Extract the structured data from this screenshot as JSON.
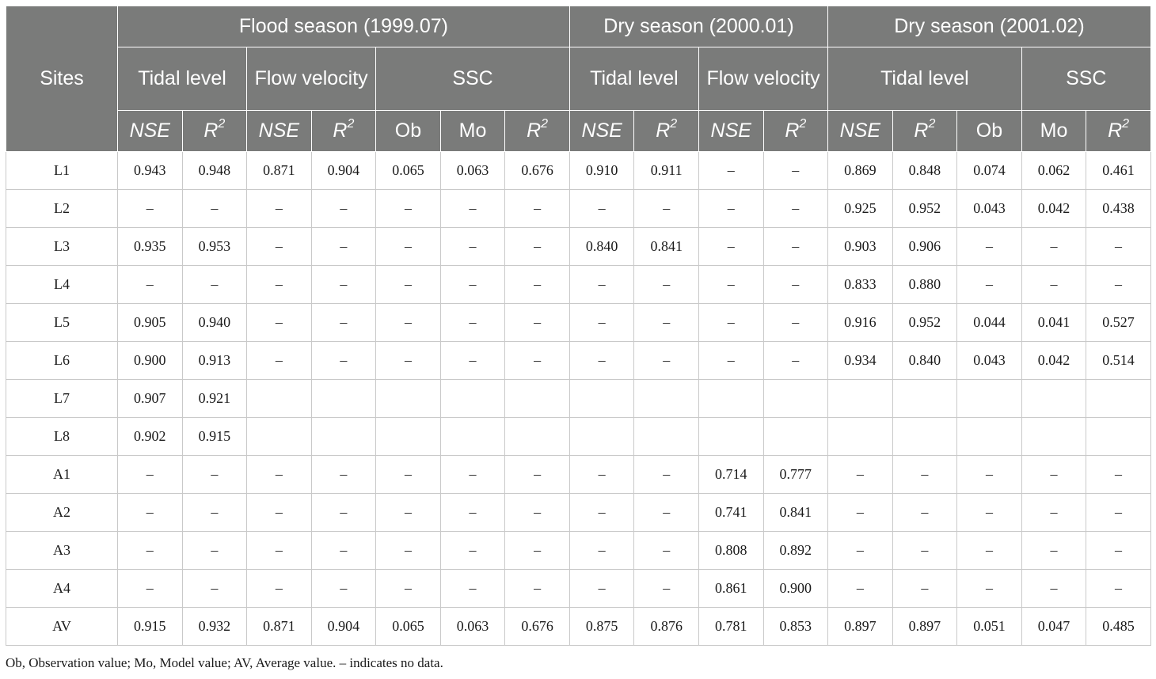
{
  "headers": {
    "sites": "Sites",
    "groups": [
      "Flood season (1999.07)",
      "Dry season (2000.01)",
      "Dry season (2001.02)"
    ],
    "flood": {
      "tidal": "Tidal level",
      "flow": "Flow velocity",
      "ssc": "SSC"
    },
    "dry1": {
      "tidal": "Tidal level",
      "flow": "Flow velocity"
    },
    "dry2": {
      "tidal": "Tidal level",
      "ssc": "SSC"
    },
    "sub": {
      "nse": "NSE",
      "r": "R",
      "sq": "2",
      "ob": "Ob",
      "mo": "Mo"
    }
  },
  "rows": [
    {
      "site": "L1",
      "cells": [
        "0.943",
        "0.948",
        "0.871",
        "0.904",
        "0.065",
        "0.063",
        "0.676",
        "0.910",
        "0.911",
        "–",
        "–",
        "0.869",
        "0.848",
        "0.074",
        "0.062",
        "0.461"
      ]
    },
    {
      "site": "L2",
      "cells": [
        "–",
        "–",
        "–",
        "–",
        "–",
        "–",
        "–",
        "–",
        "–",
        "–",
        "–",
        "0.925",
        "0.952",
        "0.043",
        "0.042",
        "0.438"
      ]
    },
    {
      "site": "L3",
      "cells": [
        "0.935",
        "0.953",
        "–",
        "–",
        "–",
        "–",
        "–",
        "0.840",
        "0.841",
        "–",
        "–",
        "0.903",
        "0.906",
        "–",
        "–",
        "–"
      ]
    },
    {
      "site": "L4",
      "cells": [
        "–",
        "–",
        "–",
        "–",
        "–",
        "–",
        "–",
        "–",
        "–",
        "–",
        "–",
        "0.833",
        "0.880",
        "–",
        "–",
        "–"
      ]
    },
    {
      "site": "L5",
      "cells": [
        "0.905",
        "0.940",
        "–",
        "–",
        "–",
        "–",
        "–",
        "–",
        "–",
        "–",
        "–",
        "0.916",
        "0.952",
        "0.044",
        "0.041",
        "0.527"
      ]
    },
    {
      "site": "L6",
      "cells": [
        "0.900",
        "0.913",
        "–",
        "–",
        "–",
        "–",
        "–",
        "–",
        "–",
        "–",
        "–",
        "0.934",
        "0.840",
        "0.043",
        "0.042",
        "0.514"
      ]
    },
    {
      "site": "L7",
      "cells": [
        "0.907",
        "0.921",
        "",
        "",
        "",
        "",
        "",
        "",
        "",
        "",
        "",
        "",
        "",
        "",
        "",
        ""
      ]
    },
    {
      "site": "L8",
      "cells": [
        "0.902",
        "0.915",
        "",
        "",
        "",
        "",
        "",
        "",
        "",
        "",
        "",
        "",
        "",
        "",
        "",
        ""
      ]
    },
    {
      "site": "A1",
      "cells": [
        "–",
        "–",
        "–",
        "–",
        "–",
        "–",
        "–",
        "–",
        "–",
        "0.714",
        "0.777",
        "–",
        "–",
        "–",
        "–",
        "–"
      ]
    },
    {
      "site": "A2",
      "cells": [
        "–",
        "–",
        "–",
        "–",
        "–",
        "–",
        "–",
        "–",
        "–",
        "0.741",
        "0.841",
        "–",
        "–",
        "–",
        "–",
        "–"
      ]
    },
    {
      "site": "A3",
      "cells": [
        "–",
        "–",
        "–",
        "–",
        "–",
        "–",
        "–",
        "–",
        "–",
        "0.808",
        "0.892",
        "–",
        "–",
        "–",
        "–",
        "–"
      ]
    },
    {
      "site": "A4",
      "cells": [
        "–",
        "–",
        "–",
        "–",
        "–",
        "–",
        "–",
        "–",
        "–",
        "0.861",
        "0.900",
        "–",
        "–",
        "–",
        "–",
        "–"
      ]
    },
    {
      "site": "AV",
      "cells": [
        "0.915",
        "0.932",
        "0.871",
        "0.904",
        "0.065",
        "0.063",
        "0.676",
        "0.875",
        "0.876",
        "0.781",
        "0.853",
        "0.897",
        "0.897",
        "0.051",
        "0.047",
        "0.485"
      ]
    }
  ],
  "footnote": "Ob, Observation value; Mo, Model value; AV, Average value. – indicates no data."
}
